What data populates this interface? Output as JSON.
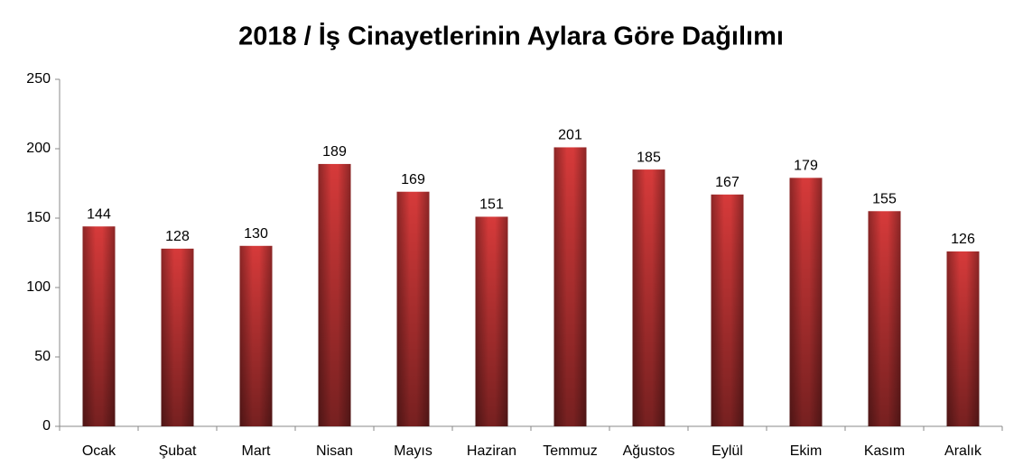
{
  "chart_data": {
    "type": "bar",
    "title": "2018 / İş Cinayetlerinin Aylara Göre Dağılımı",
    "categories": [
      "Ocak",
      "Şubat",
      "Mart",
      "Nisan",
      "Mayıs",
      "Haziran",
      "Temmuz",
      "Ağustos",
      "Eylül",
      "Ekim",
      "Kasım",
      "Aralık"
    ],
    "values": [
      144,
      128,
      130,
      189,
      169,
      151,
      201,
      185,
      167,
      179,
      155,
      126
    ],
    "color": "#d63a3a",
    "ylim": [
      0,
      250
    ],
    "yticks": [
      0,
      50,
      100,
      150,
      200,
      250
    ],
    "grid": false
  }
}
